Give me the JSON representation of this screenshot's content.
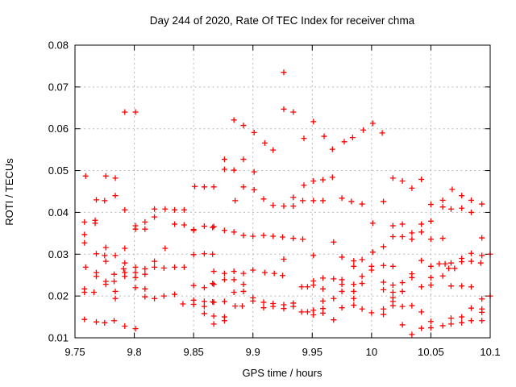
{
  "page": {
    "background": "#ffffff",
    "text_color": "#000000"
  },
  "chart_data": {
    "type": "scatter",
    "title": "Day 244 of 2020, Rate Of TEC Index for receiver chma",
    "xlabel": "GPS time / hours",
    "ylabel": "ROTI / TECUs",
    "xlim": [
      9.75,
      10.1
    ],
    "ylim": [
      0.01,
      0.08
    ],
    "x_ticks": [
      9.75,
      9.8,
      9.85,
      9.9,
      9.95,
      10,
      10.05,
      10.1
    ],
    "x_tick_labels": [
      "9.75",
      "9.8",
      "9.85",
      "9.9",
      "9.95",
      "10",
      "10.05",
      "10.1"
    ],
    "y_ticks": [
      0.01,
      0.02,
      0.03,
      0.04,
      0.05,
      0.06,
      0.07,
      0.08
    ],
    "y_tick_labels": [
      "0.01",
      "0.02",
      "0.03",
      "0.04",
      "0.05",
      "0.06",
      "0.07",
      "0.08"
    ],
    "grid": true,
    "grid_style": "dotted",
    "grid_color": "#b8b8b8",
    "border_color": "#000000",
    "legend": "none",
    "marker": {
      "shape": "plus",
      "size": 7,
      "color": "#ff0000"
    },
    "series": [
      {
        "name": "ROTI",
        "points": [
          [
            9.758,
            0.0377
          ],
          [
            9.758,
            0.0347
          ],
          [
            9.758,
            0.0327
          ],
          [
            9.758,
            0.0217
          ],
          [
            9.758,
            0.0209
          ],
          [
            9.758,
            0.0144
          ],
          [
            9.759,
            0.0487
          ],
          [
            9.759,
            0.0269
          ],
          [
            9.766,
            0.0209
          ],
          [
            9.767,
            0.0381
          ],
          [
            9.767,
            0.0374
          ],
          [
            9.768,
            0.043
          ],
          [
            9.768,
            0.0301
          ],
          [
            9.768,
            0.0256
          ],
          [
            9.768,
            0.0247
          ],
          [
            9.768,
            0.0138
          ],
          [
            9.775,
            0.0428
          ],
          [
            9.775,
            0.0297
          ],
          [
            9.775,
            0.0136
          ],
          [
            9.776,
            0.0487
          ],
          [
            9.776,
            0.0316
          ],
          [
            9.776,
            0.0283
          ],
          [
            9.776,
            0.0235
          ],
          [
            9.776,
            0.0228
          ],
          [
            9.783,
            0.0252
          ],
          [
            9.783,
            0.0235
          ],
          [
            9.783,
            0.0141
          ],
          [
            9.784,
            0.0482
          ],
          [
            9.784,
            0.044
          ],
          [
            9.784,
            0.0297
          ],
          [
            9.784,
            0.0211
          ],
          [
            9.784,
            0.0194
          ],
          [
            9.791,
            0.0265
          ],
          [
            9.792,
            0.064
          ],
          [
            9.792,
            0.0406
          ],
          [
            9.792,
            0.0314
          ],
          [
            9.792,
            0.0279
          ],
          [
            9.792,
            0.0256
          ],
          [
            9.792,
            0.0247
          ],
          [
            9.792,
            0.0128
          ],
          [
            9.801,
            0.064
          ],
          [
            9.801,
            0.0368
          ],
          [
            9.801,
            0.036
          ],
          [
            9.801,
            0.0269
          ],
          [
            9.801,
            0.0256
          ],
          [
            9.801,
            0.0244
          ],
          [
            9.801,
            0.022
          ],
          [
            9.801,
            0.0122
          ],
          [
            9.809,
            0.0377
          ],
          [
            9.809,
            0.036
          ],
          [
            9.809,
            0.0265
          ],
          [
            9.809,
            0.0252
          ],
          [
            9.809,
            0.0217
          ],
          [
            9.809,
            0.0198
          ],
          [
            9.817,
            0.0408
          ],
          [
            9.817,
            0.0389
          ],
          [
            9.817,
            0.0283
          ],
          [
            9.817,
            0.0269
          ],
          [
            9.817,
            0.0194
          ],
          [
            9.825,
            0.0267
          ],
          [
            9.825,
            0.02
          ],
          [
            9.826,
            0.0408
          ],
          [
            9.826,
            0.0314
          ],
          [
            9.834,
            0.0406
          ],
          [
            9.834,
            0.0372
          ],
          [
            9.834,
            0.0269
          ],
          [
            9.834,
            0.0204
          ],
          [
            9.841,
            0.0181
          ],
          [
            9.842,
            0.0406
          ],
          [
            9.842,
            0.037
          ],
          [
            9.842,
            0.0269
          ],
          [
            9.85,
            0.0359
          ],
          [
            9.85,
            0.0357
          ],
          [
            9.85,
            0.0299
          ],
          [
            9.85,
            0.0225
          ],
          [
            9.85,
            0.019
          ],
          [
            9.85,
            0.018
          ],
          [
            9.851,
            0.0462
          ],
          [
            9.859,
            0.0461
          ],
          [
            9.859,
            0.0367
          ],
          [
            9.859,
            0.0301
          ],
          [
            9.859,
            0.022
          ],
          [
            9.859,
            0.0187
          ],
          [
            9.859,
            0.0175
          ],
          [
            9.859,
            0.0158
          ],
          [
            9.866,
            0.0364
          ],
          [
            9.866,
            0.03
          ],
          [
            9.866,
            0.023
          ],
          [
            9.866,
            0.0186
          ],
          [
            9.867,
            0.0461
          ],
          [
            9.867,
            0.0366
          ],
          [
            9.867,
            0.0259
          ],
          [
            9.867,
            0.0228
          ],
          [
            9.867,
            0.0185
          ],
          [
            9.867,
            0.0152
          ],
          [
            9.867,
            0.0133
          ],
          [
            9.876,
            0.0527
          ],
          [
            9.876,
            0.0503
          ],
          [
            9.876,
            0.0357
          ],
          [
            9.876,
            0.0254
          ],
          [
            9.876,
            0.0239
          ],
          [
            9.876,
            0.0187
          ],
          [
            9.876,
            0.015
          ],
          [
            9.876,
            0.0141
          ],
          [
            9.884,
            0.0621
          ],
          [
            9.884,
            0.0501
          ],
          [
            9.884,
            0.0353
          ],
          [
            9.884,
            0.0259
          ],
          [
            9.884,
            0.0239
          ],
          [
            9.884,
            0.0209
          ],
          [
            9.885,
            0.0428
          ],
          [
            9.885,
            0.0176
          ],
          [
            9.891,
            0.0176
          ],
          [
            9.892,
            0.0608
          ],
          [
            9.892,
            0.0527
          ],
          [
            9.892,
            0.0461
          ],
          [
            9.892,
            0.0345
          ],
          [
            9.892,
            0.0254
          ],
          [
            9.892,
            0.0228
          ],
          [
            9.892,
            0.0211
          ],
          [
            9.9,
            0.0343
          ],
          [
            9.9,
            0.0262
          ],
          [
            9.9,
            0.0196
          ],
          [
            9.9,
            0.0188
          ],
          [
            9.901,
            0.0591
          ],
          [
            9.901,
            0.0497
          ],
          [
            9.901,
            0.0454
          ],
          [
            9.909,
            0.0432
          ],
          [
            9.909,
            0.0345
          ],
          [
            9.909,
            0.0185
          ],
          [
            9.909,
            0.0172
          ],
          [
            9.91,
            0.0566
          ],
          [
            9.91,
            0.0256
          ],
          [
            9.917,
            0.0549
          ],
          [
            9.917,
            0.0417
          ],
          [
            9.917,
            0.0343
          ],
          [
            9.917,
            0.0182
          ],
          [
            9.917,
            0.0175
          ],
          [
            9.918,
            0.0254
          ],
          [
            9.925,
            0.0341
          ],
          [
            9.925,
            0.0249
          ],
          [
            9.926,
            0.0735
          ],
          [
            9.926,
            0.0647
          ],
          [
            9.926,
            0.0415
          ],
          [
            9.926,
            0.0288
          ],
          [
            9.926,
            0.0179
          ],
          [
            9.926,
            0.017
          ],
          [
            9.934,
            0.064
          ],
          [
            9.934,
            0.0436
          ],
          [
            9.934,
            0.0415
          ],
          [
            9.934,
            0.0338
          ],
          [
            9.934,
            0.0183
          ],
          [
            9.934,
            0.0175
          ],
          [
            9.941,
            0.0222
          ],
          [
            9.941,
            0.0162
          ],
          [
            9.942,
            0.0428
          ],
          [
            9.942,
            0.0336
          ],
          [
            9.943,
            0.0577
          ],
          [
            9.943,
            0.0465
          ],
          [
            9.946,
            0.0222
          ],
          [
            9.946,
            0.0162
          ],
          [
            9.951,
            0.0617
          ],
          [
            9.951,
            0.0475
          ],
          [
            9.951,
            0.0428
          ],
          [
            9.951,
            0.0297
          ],
          [
            9.951,
            0.0236
          ],
          [
            9.951,
            0.0226
          ],
          [
            9.951,
            0.0166
          ],
          [
            9.951,
            0.0155
          ],
          [
            9.959,
            0.0478
          ],
          [
            9.959,
            0.0428
          ],
          [
            9.959,
            0.0243
          ],
          [
            9.959,
            0.0217
          ],
          [
            9.959,
            0.0188
          ],
          [
            9.959,
            0.017
          ],
          [
            9.959,
            0.0159
          ],
          [
            9.96,
            0.0582
          ],
          [
            9.967,
            0.0551
          ],
          [
            9.967,
            0.0484
          ],
          [
            9.968,
            0.0329
          ],
          [
            9.968,
            0.0241
          ],
          [
            9.968,
            0.0194
          ],
          [
            9.968,
            0.0143
          ],
          [
            9.975,
            0.0434
          ],
          [
            9.975,
            0.0293
          ],
          [
            9.975,
            0.0239
          ],
          [
            9.975,
            0.0228
          ],
          [
            9.975,
            0.0211
          ],
          [
            9.975,
            0.0172
          ],
          [
            9.977,
            0.0569
          ],
          [
            9.983,
            0.0426
          ],
          [
            9.984,
            0.0579
          ],
          [
            9.985,
            0.0284
          ],
          [
            9.985,
            0.0271
          ],
          [
            9.985,
            0.0228
          ],
          [
            9.985,
            0.0211
          ],
          [
            9.985,
            0.0194
          ],
          [
            9.985,
            0.0178
          ],
          [
            9.992,
            0.042
          ],
          [
            9.992,
            0.0287
          ],
          [
            9.992,
            0.0247
          ],
          [
            9.992,
            0.023
          ],
          [
            9.992,
            0.0169
          ],
          [
            9.993,
            0.0597
          ],
          [
            10,
            0.0271
          ],
          [
            10,
            0.0262
          ],
          [
            10,
            0.016
          ],
          [
            10.001,
            0.0613
          ],
          [
            10.001,
            0.0374
          ],
          [
            10.001,
            0.0305
          ],
          [
            10.009,
            0.059
          ],
          [
            10.01,
            0.0426
          ],
          [
            10.01,
            0.0318
          ],
          [
            10.01,
            0.0273
          ],
          [
            10.01,
            0.0233
          ],
          [
            10.01,
            0.0215
          ],
          [
            10.01,
            0.0169
          ],
          [
            10.01,
            0.0156
          ],
          [
            10.018,
            0.0482
          ],
          [
            10.018,
            0.0368
          ],
          [
            10.018,
            0.0342
          ],
          [
            10.018,
            0.0271
          ],
          [
            10.018,
            0.0226
          ],
          [
            10.018,
            0.0209
          ],
          [
            10.018,
            0.0196
          ],
          [
            10.018,
            0.0187
          ],
          [
            10.018,
            0.0177
          ],
          [
            10.026,
            0.0475
          ],
          [
            10.026,
            0.0372
          ],
          [
            10.026,
            0.0342
          ],
          [
            10.026,
            0.0232
          ],
          [
            10.026,
            0.0211
          ],
          [
            10.026,
            0.0175
          ],
          [
            10.026,
            0.0131
          ],
          [
            10.034,
            0.0458
          ],
          [
            10.034,
            0.0351
          ],
          [
            10.034,
            0.0336
          ],
          [
            10.034,
            0.0253
          ],
          [
            10.034,
            0.0244
          ],
          [
            10.034,
            0.0177
          ],
          [
            10.034,
            0.0108
          ],
          [
            10.042,
            0.0479
          ],
          [
            10.042,
            0.0372
          ],
          [
            10.042,
            0.0353
          ],
          [
            10.042,
            0.0285
          ],
          [
            10.042,
            0.0222
          ],
          [
            10.042,
            0.0162
          ],
          [
            10.042,
            0.0123
          ],
          [
            10.05,
            0.0419
          ],
          [
            10.05,
            0.0379
          ],
          [
            10.05,
            0.0336
          ],
          [
            10.05,
            0.0271
          ],
          [
            10.05,
            0.0244
          ],
          [
            10.05,
            0.0226
          ],
          [
            10.05,
            0.0139
          ],
          [
            10.05,
            0.0124
          ],
          [
            10.057,
            0.0277
          ],
          [
            10.06,
            0.0429
          ],
          [
            10.06,
            0.0413
          ],
          [
            10.06,
            0.0338
          ],
          [
            10.06,
            0.0248
          ],
          [
            10.06,
            0.0129
          ],
          [
            10.062,
            0.0277
          ],
          [
            10.065,
            0.0266
          ],
          [
            10.067,
            0.0408
          ],
          [
            10.067,
            0.0279
          ],
          [
            10.067,
            0.0224
          ],
          [
            10.067,
            0.0147
          ],
          [
            10.067,
            0.0133
          ],
          [
            10.068,
            0.0455
          ],
          [
            10.07,
            0.0266
          ],
          [
            10.076,
            0.044
          ],
          [
            10.076,
            0.041
          ],
          [
            10.076,
            0.029
          ],
          [
            10.076,
            0.0282
          ],
          [
            10.076,
            0.0224
          ],
          [
            10.076,
            0.015
          ],
          [
            10.076,
            0.0136
          ],
          [
            10.084,
            0.0429
          ],
          [
            10.084,
            0.04
          ],
          [
            10.084,
            0.0302
          ],
          [
            10.084,
            0.0283
          ],
          [
            10.084,
            0.0222
          ],
          [
            10.084,
            0.0171
          ],
          [
            10.084,
            0.0141
          ],
          [
            10.092,
            0.0279
          ],
          [
            10.093,
            0.042
          ],
          [
            10.093,
            0.0339
          ],
          [
            10.093,
            0.0297
          ],
          [
            10.093,
            0.0193
          ],
          [
            10.093,
            0.0169
          ],
          [
            10.093,
            0.0161
          ],
          [
            10.093,
            0.0141
          ],
          [
            10.1,
            0.03
          ],
          [
            10.1,
            0.02
          ]
        ]
      }
    ]
  }
}
